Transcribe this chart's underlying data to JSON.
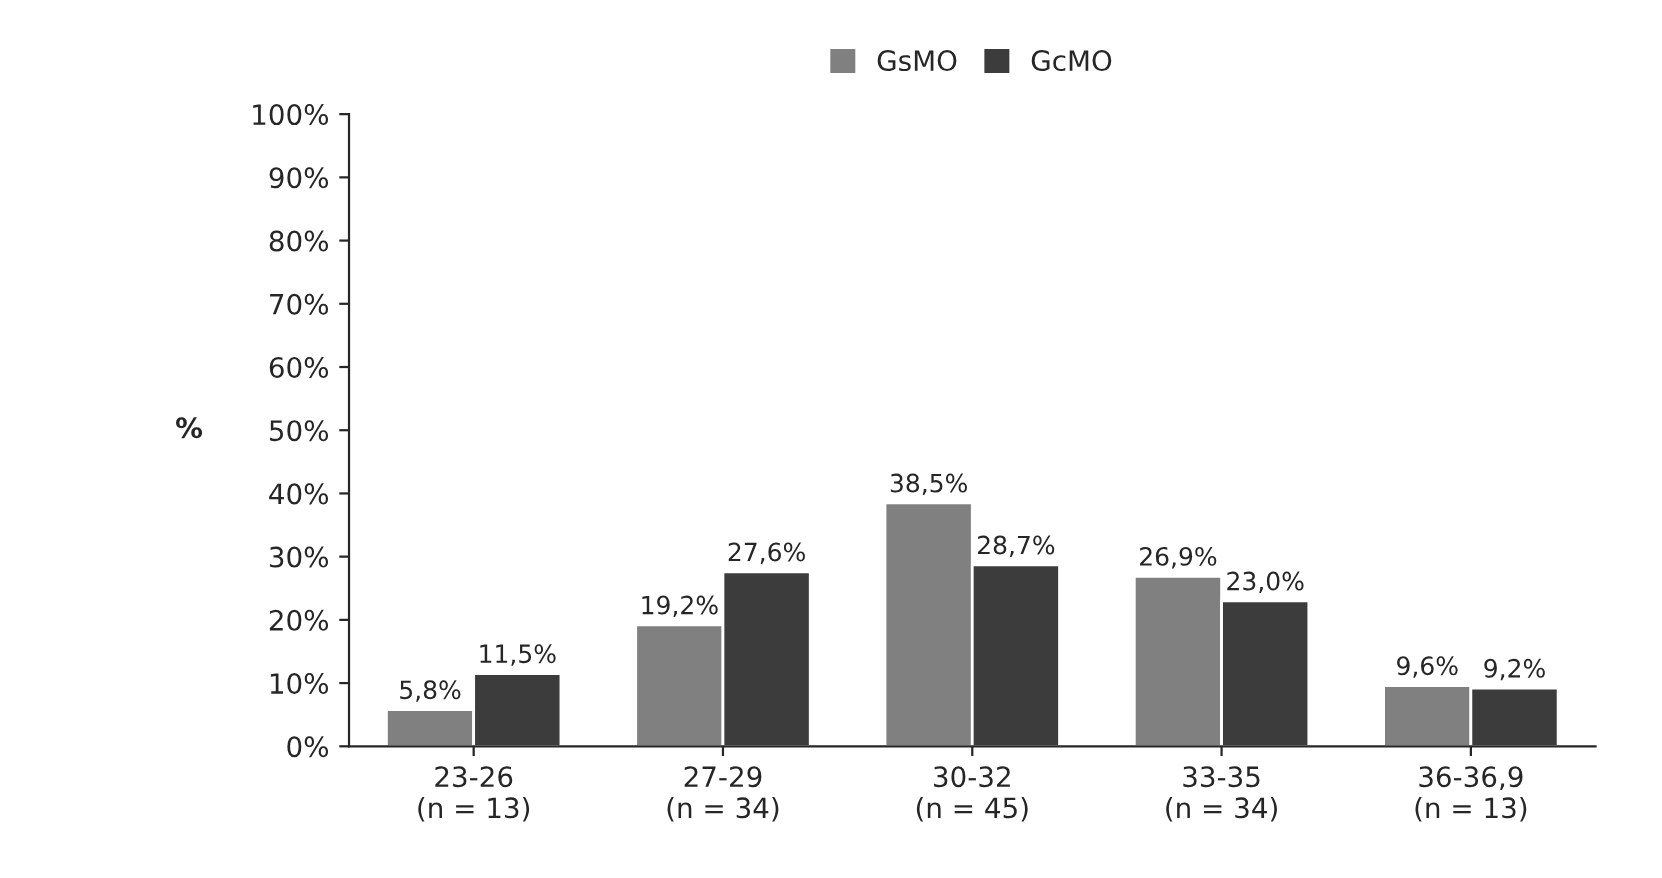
{
  "chart_data": {
    "type": "bar",
    "ylabel": "%",
    "categories": [
      "23-26\n(n = 13)",
      "27-29\n(n = 34)",
      "30-32\n(n = 45)",
      "33-35\n(n = 34)",
      "36-36,9\n(n = 13)"
    ],
    "series": [
      {
        "name": "GsMO",
        "color": "#808080",
        "values": [
          5.8,
          19.2,
          38.5,
          26.9,
          9.6
        ],
        "value_labels": [
          "5,8%",
          "19,2%",
          "38,5%",
          "26,9%",
          "9,6%"
        ]
      },
      {
        "name": "GcMO",
        "color": "#3c3c3c",
        "values": [
          11.5,
          27.6,
          28.7,
          23.0,
          9.2
        ],
        "value_labels": [
          "11,5%",
          "27,6%",
          "28,7%",
          "23,0%",
          "9,2%"
        ]
      }
    ],
    "ylim": [
      0,
      100
    ],
    "yticks": [
      {
        "value": 0,
        "label": "0%"
      },
      {
        "value": 10,
        "label": "10%"
      },
      {
        "value": 20,
        "label": "20%"
      },
      {
        "value": 30,
        "label": "30%"
      },
      {
        "value": 40,
        "label": "40%"
      },
      {
        "value": 50,
        "label": "50%"
      },
      {
        "value": 60,
        "label": "60%"
      },
      {
        "value": 70,
        "label": "70%"
      },
      {
        "value": 80,
        "label": "80%"
      },
      {
        "value": 90,
        "label": "90%"
      },
      {
        "value": 100,
        "label": "100%"
      }
    ],
    "grid": false,
    "legend": "top"
  }
}
